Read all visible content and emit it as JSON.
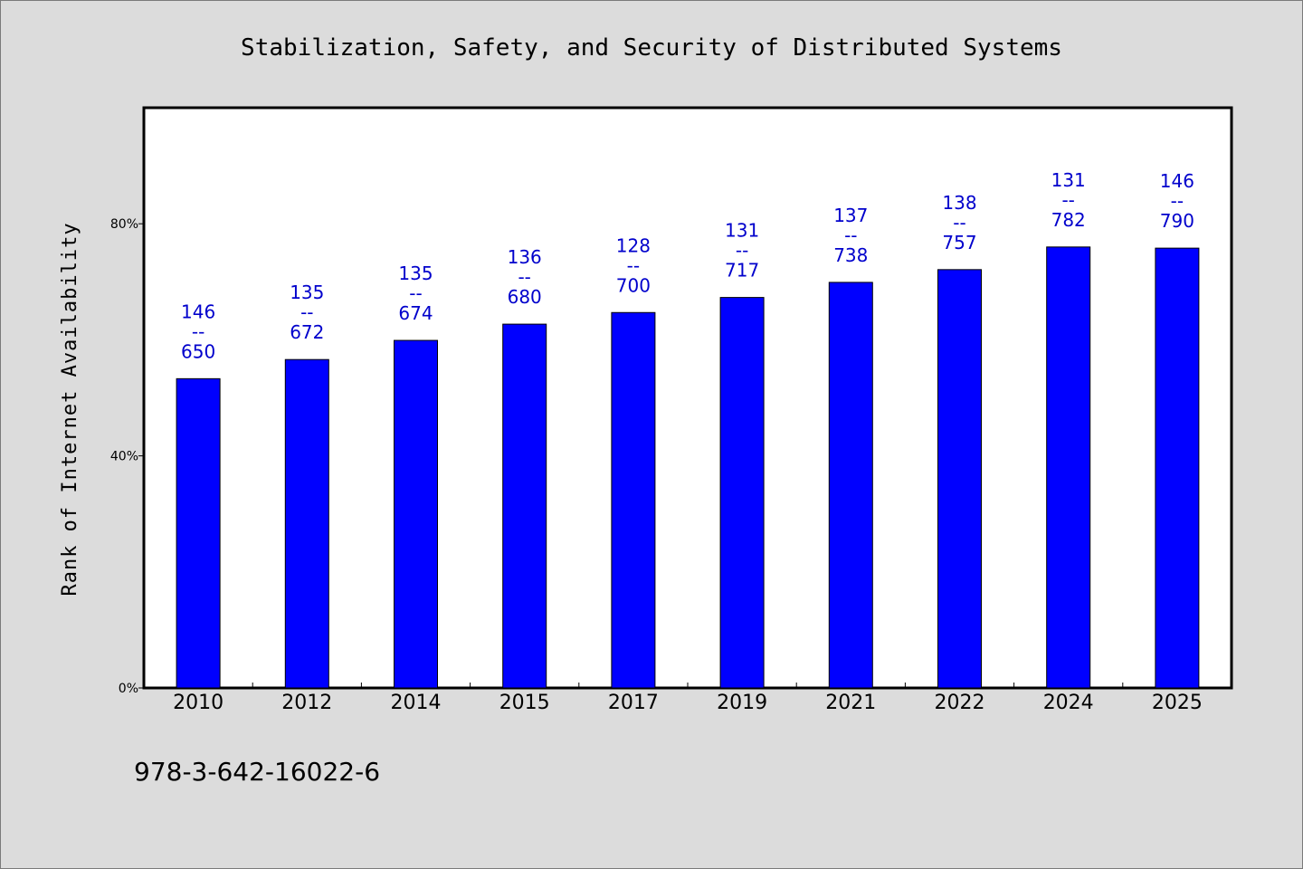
{
  "chart_data": {
    "type": "bar",
    "title": "Stabilization, Safety, and Security of Distributed Systems",
    "xlabel": "",
    "ylabel": "Rank of Internet Availability",
    "categories": [
      "2010",
      "2012",
      "2014",
      "2015",
      "2017",
      "2019",
      "2021",
      "2022",
      "2024",
      "2025"
    ],
    "values": [
      53.3,
      56.6,
      59.9,
      62.7,
      64.7,
      67.3,
      69.9,
      72.1,
      76.0,
      75.8
    ],
    "data_labels": [
      {
        "top": "146",
        "sep": "--",
        "bottom": "650"
      },
      {
        "top": "135",
        "sep": "--",
        "bottom": "672"
      },
      {
        "top": "135",
        "sep": "--",
        "bottom": "674"
      },
      {
        "top": "136",
        "sep": "--",
        "bottom": "680"
      },
      {
        "top": "128",
        "sep": "--",
        "bottom": "700"
      },
      {
        "top": "131",
        "sep": "--",
        "bottom": "717"
      },
      {
        "top": "137",
        "sep": "--",
        "bottom": "738"
      },
      {
        "top": "138",
        "sep": "--",
        "bottom": "757"
      },
      {
        "top": "131",
        "sep": "--",
        "bottom": "782"
      },
      {
        "top": "146",
        "sep": "--",
        "bottom": "790"
      }
    ],
    "ylim": [
      0,
      100
    ],
    "yticks": [
      0,
      40,
      80
    ],
    "ytick_labels": [
      "0%",
      "40%",
      "80%"
    ],
    "grid": false,
    "bar_color": "#0000ff",
    "label_color": "#0000cc"
  },
  "footnote": "978-3-642-16022-6"
}
